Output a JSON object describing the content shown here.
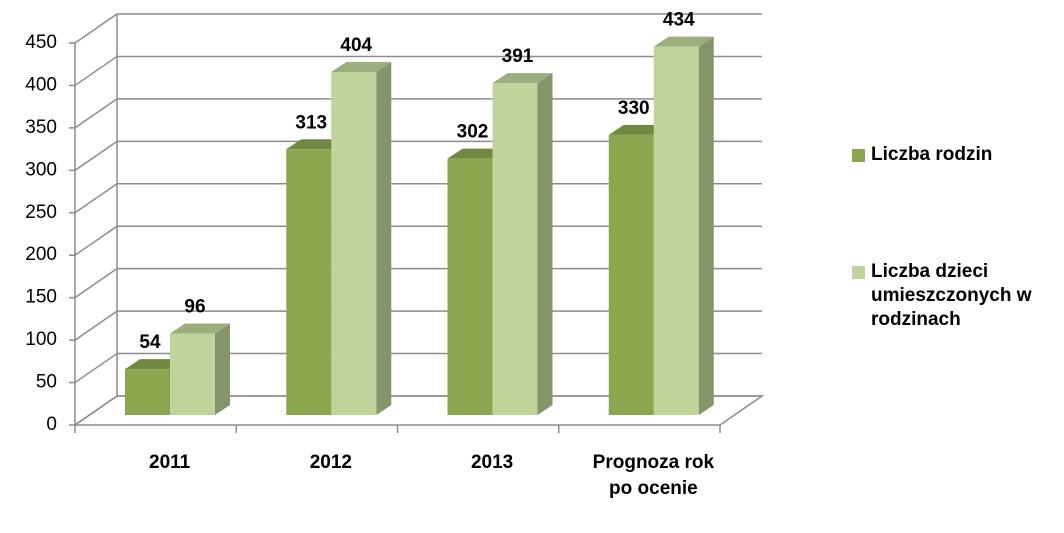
{
  "chart_data": {
    "type": "bar3d",
    "categories": [
      "2011",
      "2012",
      "2013",
      "Prognoza rok po ocenie"
    ],
    "series": [
      {
        "name": "Liczba rodzin",
        "color": "#8aa64e",
        "values": [
          54,
          313,
          302,
          330
        ]
      },
      {
        "name": "Liczba dzieci umieszczonych w rodzinach",
        "color": "#bfd49a",
        "values": [
          96,
          404,
          391,
          434
        ]
      }
    ],
    "ylim": [
      0,
      450
    ],
    "yticks": [
      0,
      50,
      100,
      150,
      200,
      250,
      300,
      350,
      400,
      450
    ],
    "grid": true,
    "legend": "right"
  }
}
